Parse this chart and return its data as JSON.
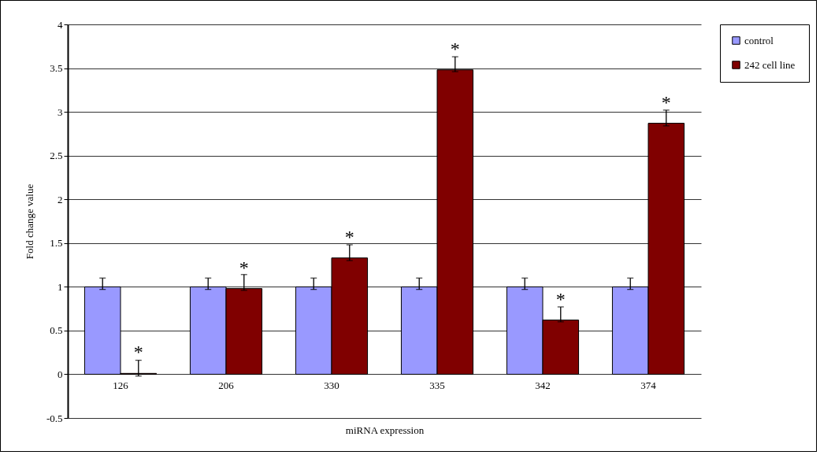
{
  "chart_data": {
    "type": "bar",
    "xlabel": "miRNA expression",
    "ylabel": "Fold change value",
    "categories": [
      "126",
      "206",
      "330",
      "335",
      "342",
      "374"
    ],
    "series": [
      {
        "name": "control",
        "color": "#9999ff",
        "values": [
          1,
          1,
          1,
          1,
          1,
          1
        ],
        "errors": [
          [
            0.97,
            1.1
          ],
          [
            0.97,
            1.1
          ],
          [
            0.97,
            1.1
          ],
          [
            0.97,
            1.1
          ],
          [
            0.97,
            1.1
          ],
          [
            0.97,
            1.1
          ]
        ]
      },
      {
        "name": "242 cell  line",
        "color": "#800000",
        "values": [
          0.01,
          0.98,
          1.33,
          3.48,
          0.62,
          2.87
        ],
        "errors": [
          [
            -0.02,
            0.16
          ],
          [
            0.96,
            1.14
          ],
          [
            1.3,
            1.48
          ],
          [
            3.46,
            3.63
          ],
          [
            0.6,
            0.77
          ],
          [
            2.84,
            3.02
          ]
        ]
      }
    ],
    "annotations": [
      {
        "text": "*",
        "x": "126",
        "y": 0.01
      },
      {
        "text": "*",
        "x": "206",
        "y": 0.98
      },
      {
        "text": "*",
        "x": "330",
        "y": 1.33
      },
      {
        "text": "*",
        "x": "335",
        "y": 3.48
      },
      {
        "text": "*",
        "x": "342",
        "y": 0.62
      },
      {
        "text": "*",
        "x": "374",
        "y": 2.87
      }
    ],
    "ylim": [
      -0.5,
      4
    ],
    "yticks": [
      -0.5,
      0,
      0.5,
      1,
      1.5,
      2,
      2.5,
      3,
      3.5,
      4
    ],
    "grid": "y",
    "legend": "right"
  }
}
